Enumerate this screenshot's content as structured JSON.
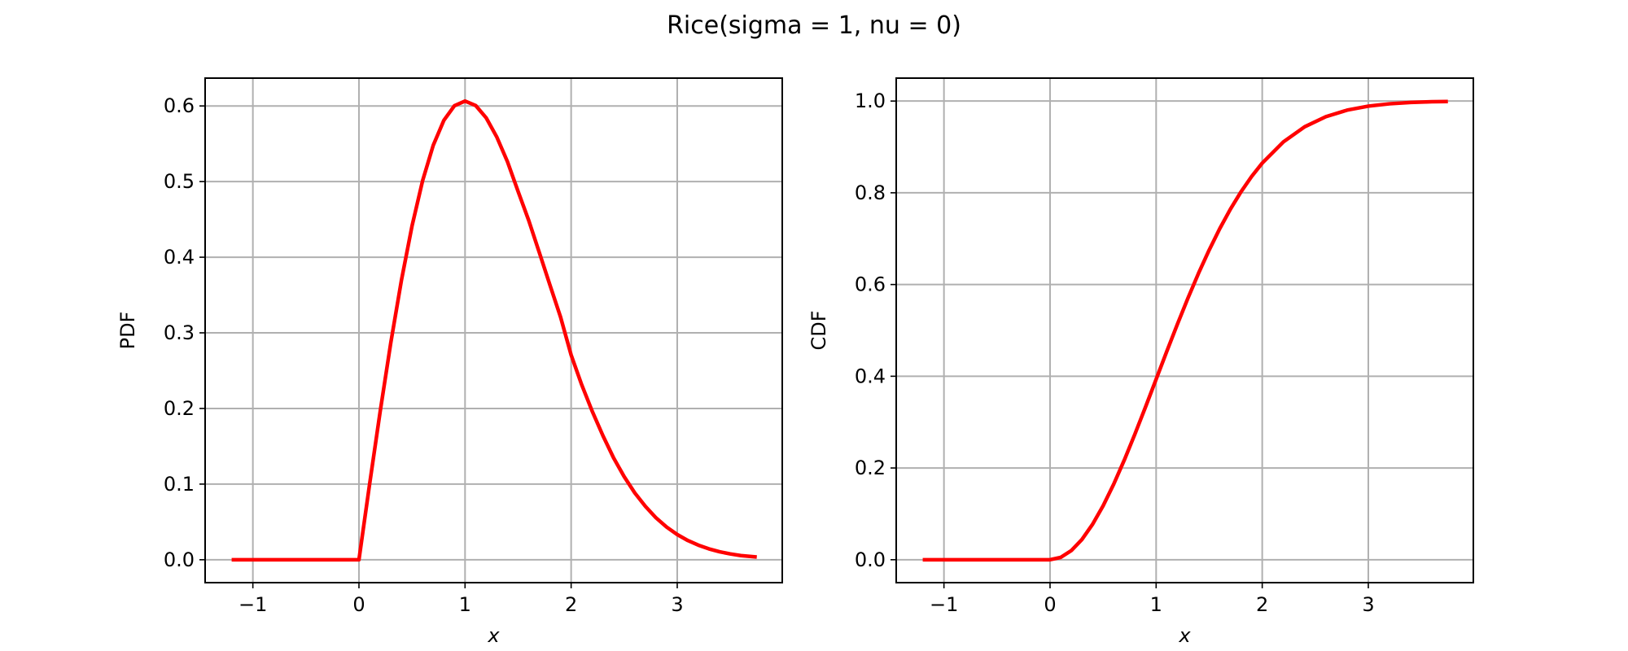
{
  "figure": {
    "title": "Rice(sigma = 1, nu = 0)"
  },
  "chart_data": [
    {
      "type": "line",
      "xlabel": "x",
      "ylabel": "PDF",
      "xlim": [
        -1.45,
        3.99
      ],
      "ylim": [
        -0.0303,
        0.6368
      ],
      "xticks": [
        -1,
        0,
        1,
        2,
        3
      ],
      "xtick_labels": [
        "−1",
        "0",
        "1",
        "2",
        "3"
      ],
      "yticks": [
        0.0,
        0.1,
        0.2,
        0.3,
        0.4,
        0.5,
        0.6
      ],
      "ytick_labels": [
        "0.0",
        "0.1",
        "0.2",
        "0.3",
        "0.4",
        "0.5",
        "0.6"
      ],
      "grid": true,
      "color": "#ff0000",
      "series": [
        {
          "x": [
            -1.2,
            -0.8,
            -0.4,
            -0.2,
            -0.02,
            0.0,
            0.02,
            0.05,
            0.1,
            0.2,
            0.3,
            0.4,
            0.5,
            0.6,
            0.7,
            0.8,
            0.9,
            1.0,
            1.1,
            1.2,
            1.3,
            1.4,
            1.5,
            1.6,
            1.7,
            1.8,
            1.9,
            2.0,
            2.1,
            2.2,
            2.3,
            2.4,
            2.5,
            2.6,
            2.7,
            2.8,
            2.9,
            3.0,
            3.1,
            3.2,
            3.3,
            3.4,
            3.5,
            3.6,
            3.75
          ],
          "y": [
            0,
            0,
            0,
            0,
            0,
            0,
            0.02,
            0.0499,
            0.0995,
            0.196,
            0.2869,
            0.3692,
            0.4412,
            0.5012,
            0.5479,
            0.5809,
            0.6003,
            0.6065,
            0.6006,
            0.5841,
            0.5587,
            0.5262,
            0.487,
            0.4487,
            0.4062,
            0.3633,
            0.321,
            0.2707,
            0.2312,
            0.1959,
            0.1639,
            0.1347,
            0.1098,
            0.0883,
            0.0706,
            0.0554,
            0.0432,
            0.0333,
            0.0254,
            0.0192,
            0.0143,
            0.0105,
            0.0077,
            0.0055,
            0.0036
          ]
        }
      ]
    },
    {
      "type": "line",
      "xlabel": "x",
      "ylabel": "CDF",
      "xlim": [
        -1.45,
        3.99
      ],
      "ylim": [
        -0.05,
        1.05
      ],
      "xticks": [
        -1,
        0,
        1,
        2,
        3
      ],
      "xtick_labels": [
        "−1",
        "0",
        "1",
        "2",
        "3"
      ],
      "yticks": [
        0.0,
        0.2,
        0.4,
        0.6,
        0.8,
        1.0
      ],
      "ytick_labels": [
        "0.0",
        "0.2",
        "0.4",
        "0.6",
        "0.8",
        "1.0"
      ],
      "grid": true,
      "color": "#ff0000",
      "series": [
        {
          "x": [
            -1.2,
            -0.8,
            -0.4,
            0.0,
            0.1,
            0.2,
            0.3,
            0.4,
            0.5,
            0.6,
            0.7,
            0.8,
            0.9,
            1.0,
            1.1,
            1.2,
            1.3,
            1.4,
            1.5,
            1.6,
            1.7,
            1.8,
            1.9,
            2.0,
            2.2,
            2.4,
            2.6,
            2.8,
            3.0,
            3.2,
            3.4,
            3.6,
            3.75
          ],
          "y": [
            0,
            0,
            0,
            0,
            0.005,
            0.0198,
            0.044,
            0.0769,
            0.1175,
            0.1647,
            0.2173,
            0.2739,
            0.333,
            0.3935,
            0.4539,
            0.5132,
            0.5704,
            0.6247,
            0.6753,
            0.722,
            0.7643,
            0.8021,
            0.8355,
            0.8647,
            0.9111,
            0.9439,
            0.966,
            0.9802,
            0.9889,
            0.994,
            0.9969,
            0.9985,
            0.9991
          ]
        }
      ]
    }
  ]
}
